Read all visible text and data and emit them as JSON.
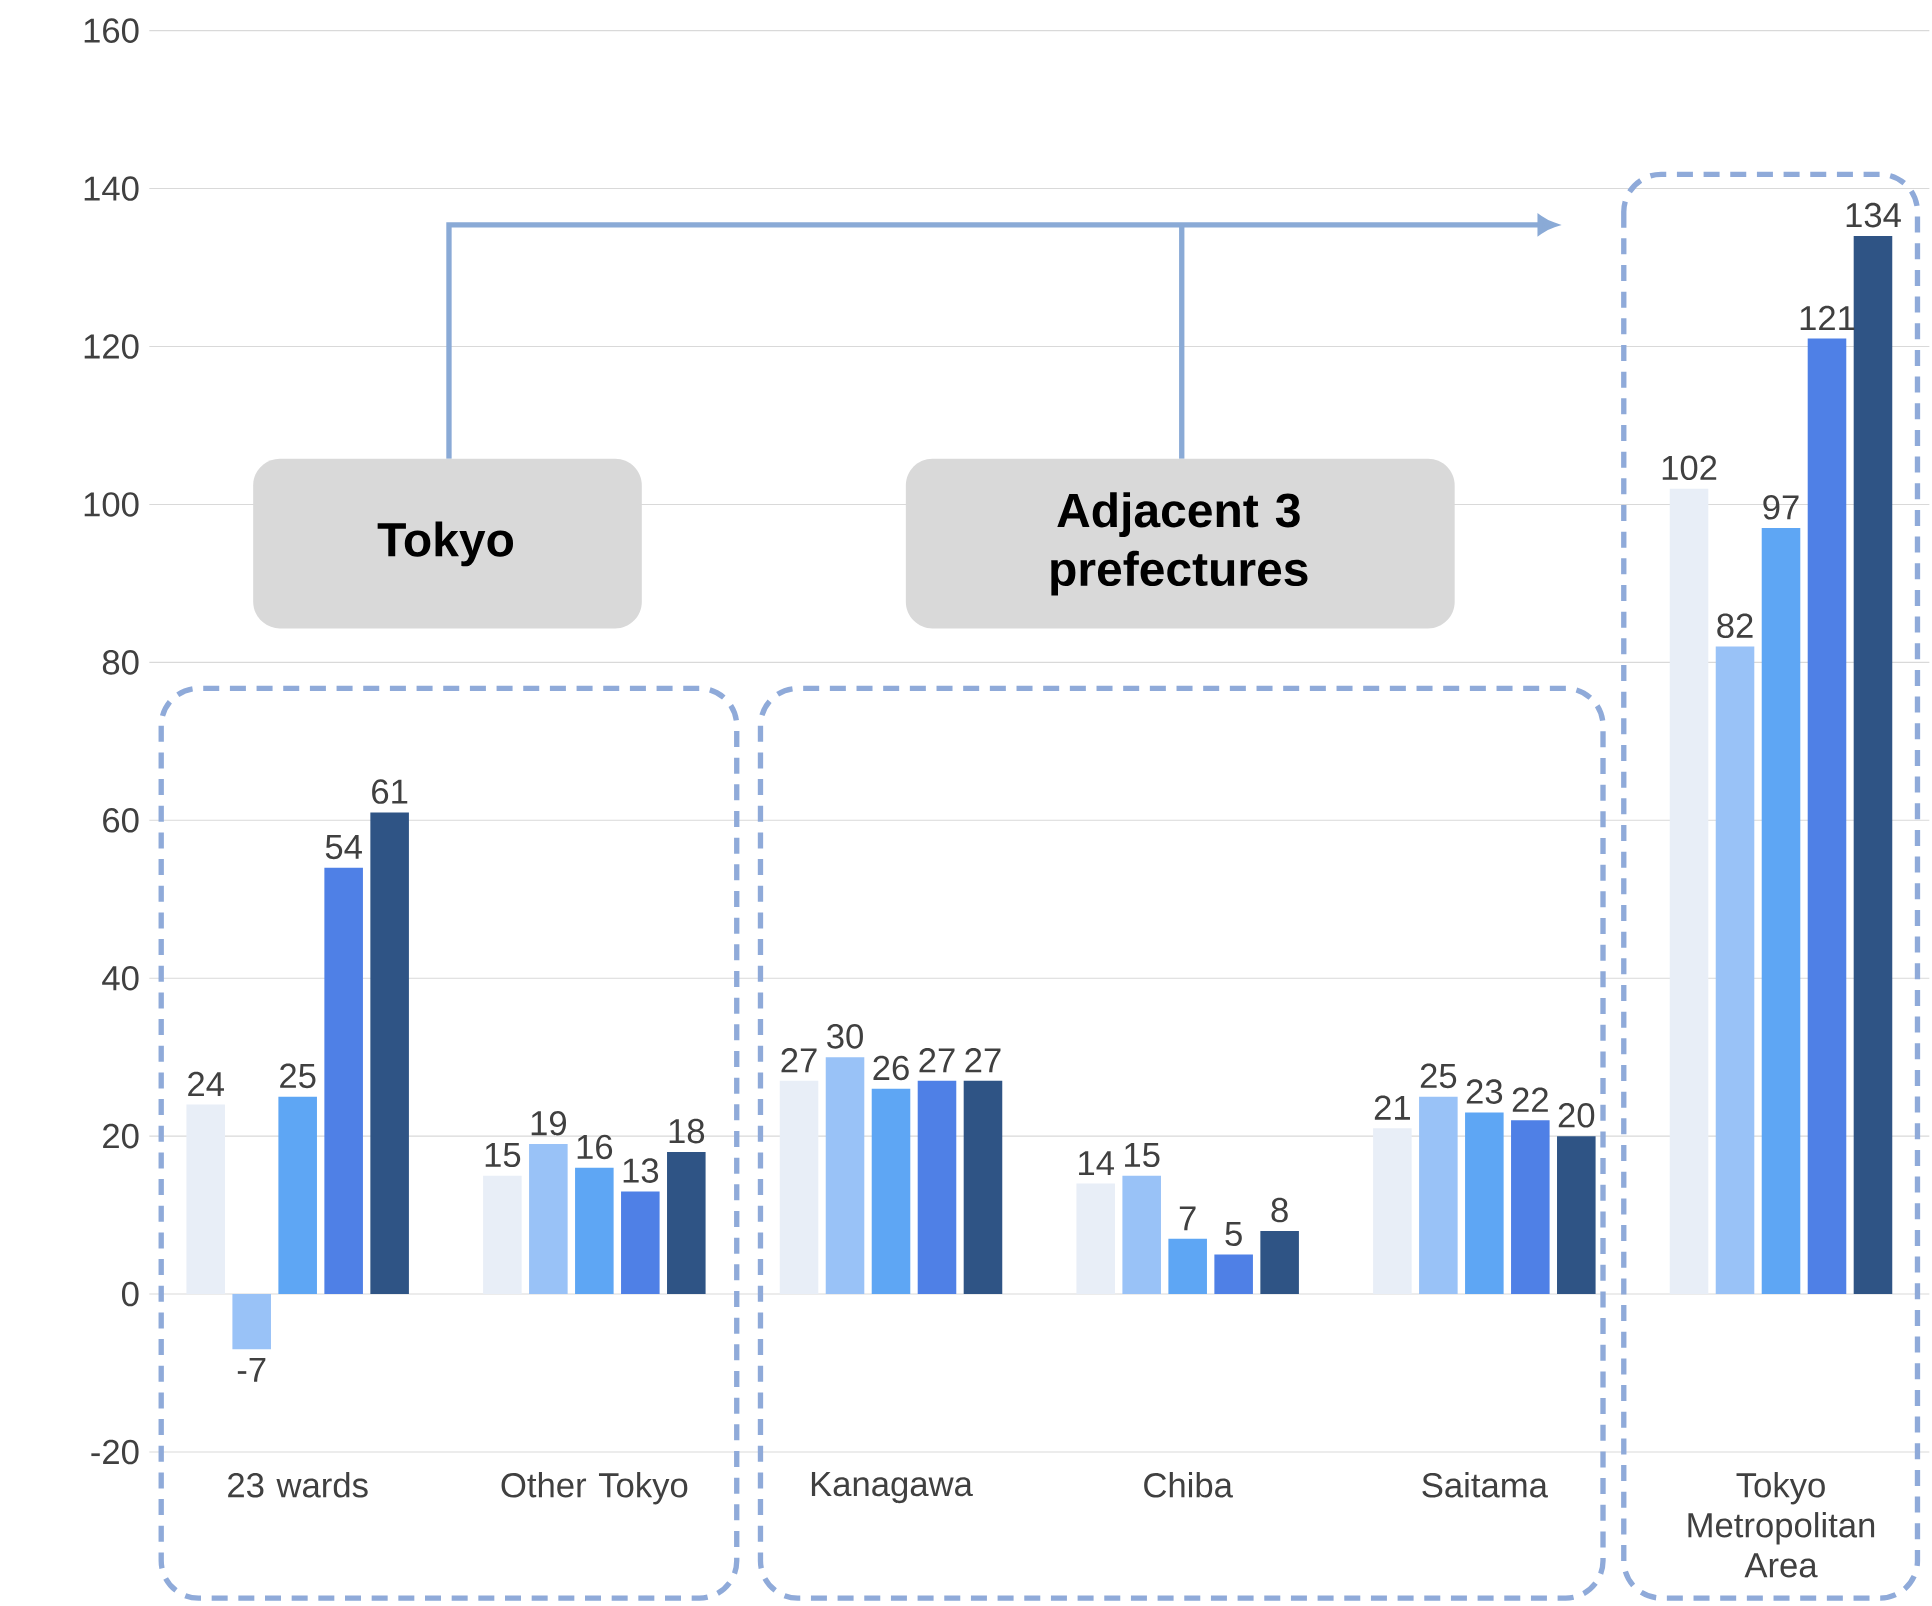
{
  "chart_data": {
    "type": "bar",
    "categories": [
      "23 wards",
      "Other Tokyo",
      "Kanagawa",
      "Chiba",
      "Saitama",
      "Tokyo Metropolitan Area"
    ],
    "series": [
      {
        "color": "#e8eef7",
        "values": [
          24,
          15,
          27,
          14,
          21,
          102
        ]
      },
      {
        "color": "#99c2f7",
        "values": [
          -7,
          19,
          30,
          15,
          25,
          82
        ]
      },
      {
        "color": "#5ea6f4",
        "values": [
          25,
          16,
          26,
          7,
          23,
          97
        ]
      },
      {
        "color": "#4f80e6",
        "values": [
          54,
          13,
          27,
          5,
          22,
          121
        ]
      },
      {
        "color": "#2f5485",
        "values": [
          61,
          18,
          27,
          8,
          20,
          134
        ]
      }
    ],
    "ylim": [
      -20,
      160
    ],
    "yticks": [
      -20,
      0,
      20,
      40,
      60,
      80,
      100,
      120,
      140,
      160
    ],
    "grid": "y",
    "data_labels": true,
    "annotations": [
      "Tokyo",
      "Adjacent 3 prefectures"
    ]
  }
}
